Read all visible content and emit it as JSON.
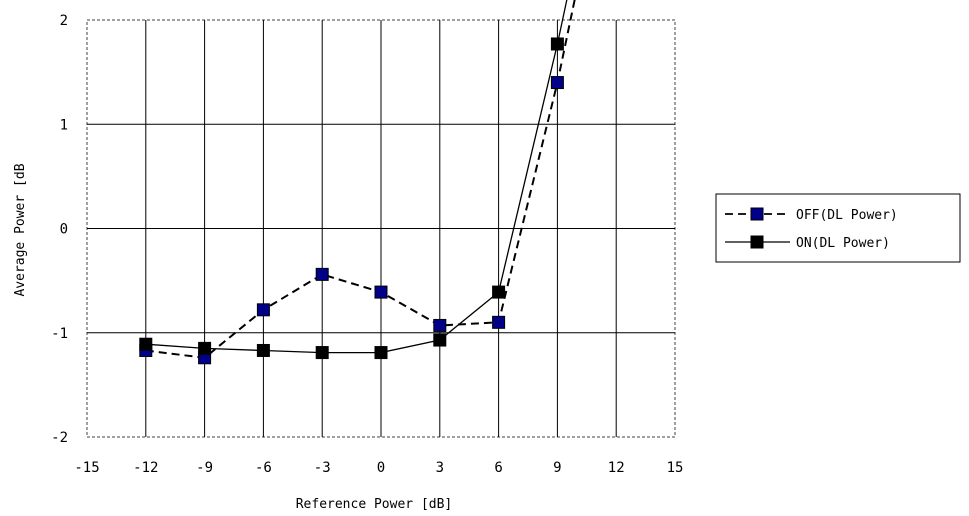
{
  "chart_data": {
    "type": "line",
    "title": "",
    "xlabel": "Reference Power [dB]",
    "ylabel": "Average Power  [dB",
    "xlim": [
      -15,
      15
    ],
    "ylim": [
      -2,
      2
    ],
    "xticks": [
      -15,
      -12,
      -9,
      -6,
      -3,
      0,
      3,
      6,
      9,
      12,
      15
    ],
    "yticks": [
      -2,
      -1,
      0,
      1,
      2
    ],
    "grid": true,
    "legend_position": "right",
    "series": [
      {
        "name": "OFF(DL Power)",
        "line_style": "dashed",
        "marker_color": "#00008b",
        "x": [
          -12,
          -9,
          -6,
          -3,
          0,
          3,
          6,
          9
        ],
        "y": [
          -1.17,
          -1.24,
          -0.78,
          -0.44,
          -0.61,
          -0.93,
          -0.9,
          1.4
        ],
        "extends_to": [
          10,
          2.3
        ]
      },
      {
        "name": "ON(DL Power)",
        "line_style": "solid",
        "marker_color": "#000000",
        "x": [
          -12,
          -9,
          -6,
          -3,
          0,
          3,
          6,
          9
        ],
        "y": [
          -1.11,
          -1.15,
          -1.17,
          -1.19,
          -1.19,
          -1.07,
          -0.61,
          1.77
        ],
        "extends_to": [
          9.6,
          2.3
        ]
      }
    ]
  }
}
